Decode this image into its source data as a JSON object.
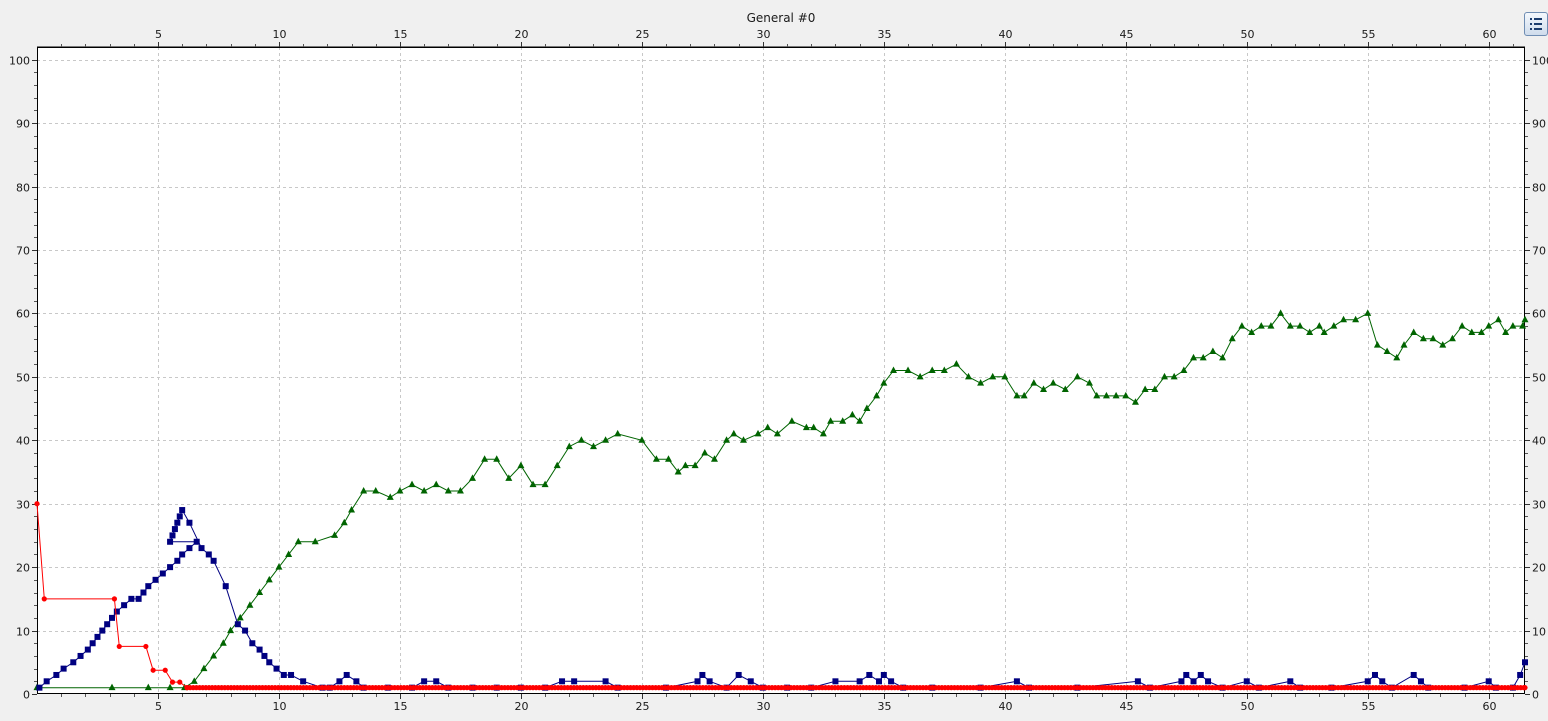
{
  "window": {
    "title": "General  #0",
    "legend_button_icon": "legend-list-icon"
  },
  "colors": {
    "background": "#f0f0f0",
    "plot_background": "#ffffff",
    "grid": "#c8c8c8",
    "blue_series": "#000080",
    "red_series": "#ff0000",
    "green_series": "#006400"
  },
  "chart_data": {
    "type": "line",
    "title": "General  #0",
    "xlim": [
      0,
      61.5
    ],
    "ylim": [
      0,
      102
    ],
    "x_ticks": [
      5,
      10,
      15,
      20,
      25,
      30,
      35,
      40,
      45,
      50,
      55,
      60
    ],
    "x_tick_labels": [
      "5",
      "10",
      "15",
      "20",
      "25",
      "30",
      "35",
      "40",
      "45",
      "50",
      "55",
      "60"
    ],
    "y_ticks": [
      0,
      10,
      20,
      30,
      40,
      50,
      60,
      70,
      80,
      90,
      100
    ],
    "y_tick_labels": [
      "0",
      "10",
      "20",
      "30",
      "40",
      "50",
      "60",
      "70",
      "80",
      "90",
      "100"
    ],
    "grid": true,
    "legend": "hidden",
    "series": [
      {
        "color": "#006400",
        "marker": "triangle",
        "points": [
          [
            0,
            1
          ],
          [
            3.1,
            1
          ],
          [
            4.6,
            1
          ],
          [
            5.5,
            1
          ],
          [
            6.1,
            1
          ],
          [
            6.5,
            2
          ],
          [
            6.9,
            4
          ],
          [
            7.3,
            6
          ],
          [
            7.7,
            8
          ],
          [
            8.0,
            10
          ],
          [
            8.4,
            12
          ],
          [
            8.8,
            14
          ],
          [
            9.2,
            16
          ],
          [
            9.6,
            18
          ],
          [
            10.0,
            20
          ],
          [
            10.4,
            22
          ],
          [
            10.8,
            24
          ],
          [
            11.5,
            24
          ],
          [
            12.3,
            25
          ],
          [
            12.7,
            27
          ],
          [
            13.0,
            29
          ],
          [
            13.5,
            32
          ],
          [
            14.0,
            32
          ],
          [
            14.6,
            31
          ],
          [
            15.0,
            32
          ],
          [
            15.5,
            33
          ],
          [
            16.0,
            32
          ],
          [
            16.5,
            33
          ],
          [
            17.0,
            32
          ],
          [
            17.5,
            32
          ],
          [
            18.0,
            34
          ],
          [
            18.5,
            37
          ],
          [
            19.0,
            37
          ],
          [
            19.5,
            34
          ],
          [
            20.0,
            36
          ],
          [
            20.5,
            33
          ],
          [
            21.0,
            33
          ],
          [
            21.5,
            36
          ],
          [
            22.0,
            39
          ],
          [
            22.5,
            40
          ],
          [
            23.0,
            39
          ],
          [
            23.5,
            40
          ],
          [
            24.0,
            41
          ],
          [
            25.0,
            40
          ],
          [
            25.6,
            37
          ],
          [
            26.1,
            37
          ],
          [
            26.5,
            35
          ],
          [
            26.8,
            36
          ],
          [
            27.2,
            36
          ],
          [
            27.6,
            38
          ],
          [
            28.0,
            37
          ],
          [
            28.5,
            40
          ],
          [
            28.8,
            41
          ],
          [
            29.2,
            40
          ],
          [
            29.8,
            41
          ],
          [
            30.2,
            42
          ],
          [
            30.6,
            41
          ],
          [
            31.2,
            43
          ],
          [
            31.8,
            42
          ],
          [
            32.1,
            42
          ],
          [
            32.5,
            41
          ],
          [
            32.8,
            43
          ],
          [
            33.3,
            43
          ],
          [
            33.7,
            44
          ],
          [
            34.0,
            43
          ],
          [
            34.3,
            45
          ],
          [
            34.7,
            47
          ],
          [
            35.0,
            49
          ],
          [
            35.4,
            51
          ],
          [
            36.0,
            51
          ],
          [
            36.5,
            50
          ],
          [
            37.0,
            51
          ],
          [
            37.5,
            51
          ],
          [
            38.0,
            52
          ],
          [
            38.5,
            50
          ],
          [
            39.0,
            49
          ],
          [
            39.5,
            50
          ],
          [
            40.0,
            50
          ],
          [
            40.5,
            47
          ],
          [
            40.8,
            47
          ],
          [
            41.2,
            49
          ],
          [
            41.6,
            48
          ],
          [
            42.0,
            49
          ],
          [
            42.5,
            48
          ],
          [
            43.0,
            50
          ],
          [
            43.5,
            49
          ],
          [
            43.8,
            47
          ],
          [
            44.2,
            47
          ],
          [
            44.6,
            47
          ],
          [
            45.0,
            47
          ],
          [
            45.4,
            46
          ],
          [
            45.8,
            48
          ],
          [
            46.2,
            48
          ],
          [
            46.6,
            50
          ],
          [
            47.0,
            50
          ],
          [
            47.4,
            51
          ],
          [
            47.8,
            53
          ],
          [
            48.2,
            53
          ],
          [
            48.6,
            54
          ],
          [
            49.0,
            53
          ],
          [
            49.4,
            56
          ],
          [
            49.8,
            58
          ],
          [
            50.2,
            57
          ],
          [
            50.6,
            58
          ],
          [
            51.0,
            58
          ],
          [
            51.4,
            60
          ],
          [
            51.8,
            58
          ],
          [
            52.2,
            58
          ],
          [
            52.6,
            57
          ],
          [
            53.0,
            58
          ],
          [
            53.2,
            57
          ],
          [
            53.6,
            58
          ],
          [
            54.0,
            59
          ],
          [
            54.5,
            59
          ],
          [
            55.0,
            60
          ],
          [
            55.4,
            55
          ],
          [
            55.8,
            54
          ],
          [
            56.2,
            53
          ],
          [
            56.5,
            55
          ],
          [
            56.9,
            57
          ],
          [
            57.3,
            56
          ],
          [
            57.7,
            56
          ],
          [
            58.1,
            55
          ],
          [
            58.5,
            56
          ],
          [
            58.9,
            58
          ],
          [
            59.3,
            57
          ],
          [
            59.7,
            57
          ],
          [
            60.0,
            58
          ],
          [
            60.4,
            59
          ],
          [
            60.7,
            57
          ],
          [
            61.0,
            58
          ],
          [
            61.4,
            58
          ],
          [
            61.5,
            59
          ]
        ]
      },
      {
        "color": "#000080",
        "marker": "square",
        "points": [
          [
            0.1,
            1
          ],
          [
            0.4,
            2
          ],
          [
            0.8,
            3
          ],
          [
            1.1,
            4
          ],
          [
            1.5,
            5
          ],
          [
            1.8,
            6
          ],
          [
            2.1,
            7
          ],
          [
            2.3,
            8
          ],
          [
            2.5,
            9
          ],
          [
            2.7,
            10
          ],
          [
            2.9,
            11
          ],
          [
            3.1,
            12
          ],
          [
            3.3,
            13
          ],
          [
            3.6,
            14
          ],
          [
            3.9,
            15
          ],
          [
            4.2,
            15
          ],
          [
            4.4,
            16
          ],
          [
            4.6,
            17
          ],
          [
            4.9,
            18
          ],
          [
            5.2,
            19
          ],
          [
            5.5,
            20
          ],
          [
            5.8,
            21
          ],
          [
            6.0,
            22
          ],
          [
            6.3,
            23
          ],
          [
            6.6,
            24
          ],
          [
            5.5,
            24
          ],
          [
            5.6,
            25
          ],
          [
            5.7,
            26
          ],
          [
            5.8,
            27
          ],
          [
            5.9,
            28
          ],
          [
            6.0,
            29
          ],
          [
            6.3,
            27
          ],
          [
            6.8,
            23
          ],
          [
            7.1,
            22
          ],
          [
            7.3,
            21
          ],
          [
            7.8,
            17
          ],
          [
            8.3,
            11
          ],
          [
            8.6,
            10
          ],
          [
            8.9,
            8
          ],
          [
            9.2,
            7
          ],
          [
            9.4,
            6
          ],
          [
            9.6,
            5
          ],
          [
            9.9,
            4
          ],
          [
            10.2,
            3
          ],
          [
            10.5,
            3
          ],
          [
            11.0,
            2
          ],
          [
            11.8,
            1
          ],
          [
            12.1,
            1
          ],
          [
            12.5,
            2
          ],
          [
            12.8,
            3
          ],
          [
            13.2,
            2
          ],
          [
            13.5,
            1
          ],
          [
            14.5,
            1
          ],
          [
            15.5,
            1
          ],
          [
            16.0,
            2
          ],
          [
            16.5,
            2
          ],
          [
            17.0,
            1
          ],
          [
            18.0,
            1
          ],
          [
            19.0,
            1
          ],
          [
            20.0,
            1
          ],
          [
            21.0,
            1
          ],
          [
            21.7,
            2
          ],
          [
            22.2,
            2
          ],
          [
            23.5,
            2
          ],
          [
            24.0,
            1
          ],
          [
            26.0,
            1
          ],
          [
            27.3,
            2
          ],
          [
            27.5,
            3
          ],
          [
            27.8,
            2
          ],
          [
            28.5,
            1
          ],
          [
            29.0,
            3
          ],
          [
            29.5,
            2
          ],
          [
            30.0,
            1
          ],
          [
            31.0,
            1
          ],
          [
            32.0,
            1
          ],
          [
            33.0,
            2
          ],
          [
            34.0,
            2
          ],
          [
            34.4,
            3
          ],
          [
            34.8,
            2
          ],
          [
            35.0,
            3
          ],
          [
            35.3,
            2
          ],
          [
            35.8,
            1
          ],
          [
            37.0,
            1
          ],
          [
            39.0,
            1
          ],
          [
            40.5,
            2
          ],
          [
            41.0,
            1
          ],
          [
            43.0,
            1
          ],
          [
            45.5,
            2
          ],
          [
            46.0,
            1
          ],
          [
            47.3,
            2
          ],
          [
            47.5,
            3
          ],
          [
            47.8,
            2
          ],
          [
            48.1,
            3
          ],
          [
            48.4,
            2
          ],
          [
            49.0,
            1
          ],
          [
            50.0,
            2
          ],
          [
            50.5,
            1
          ],
          [
            51.8,
            2
          ],
          [
            52.2,
            1
          ],
          [
            53.5,
            1
          ],
          [
            55.0,
            2
          ],
          [
            55.3,
            3
          ],
          [
            55.6,
            2
          ],
          [
            56.0,
            1
          ],
          [
            56.9,
            3
          ],
          [
            57.2,
            2
          ],
          [
            57.5,
            1
          ],
          [
            59.0,
            1
          ],
          [
            60.0,
            2
          ],
          [
            60.3,
            1
          ],
          [
            61.0,
            1
          ],
          [
            61.3,
            3
          ],
          [
            61.5,
            5
          ]
        ]
      },
      {
        "color": "#ff0000",
        "marker": "circle",
        "points": [
          [
            0,
            30
          ],
          [
            0.3,
            15
          ],
          [
            3.2,
            15
          ],
          [
            3.4,
            7.5
          ],
          [
            4.5,
            7.5
          ],
          [
            4.8,
            3.75
          ],
          [
            5.3,
            3.75
          ],
          [
            5.6,
            1.875
          ],
          [
            5.9,
            1.875
          ],
          [
            6.2,
            1
          ],
          [
            61.5,
            1
          ]
        ],
        "dense_tail_from_x": 6.2
      }
    ]
  }
}
